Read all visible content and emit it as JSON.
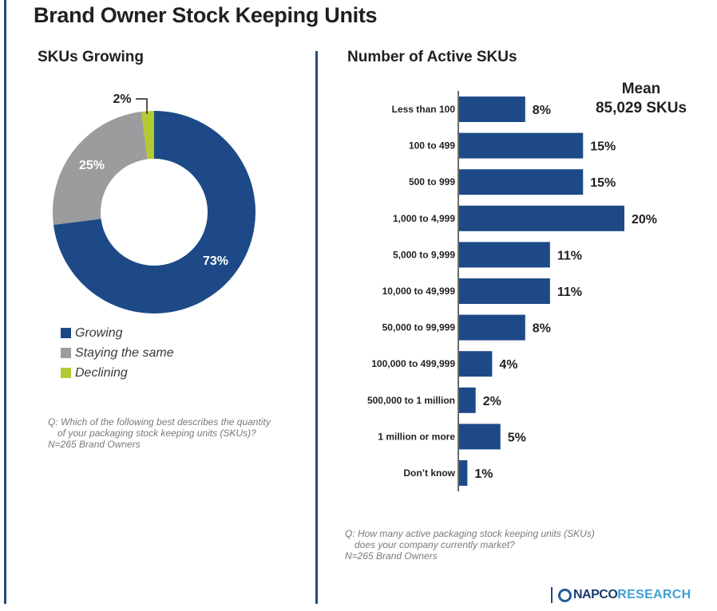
{
  "title": "Brand Owner Stock Keeping Units",
  "colors": {
    "primary": "#1d4a87",
    "gray": "#9b9c9e",
    "green": "#b5c930",
    "divider": "#274b7a",
    "text": "#231f20",
    "note": "#7a7a7a"
  },
  "left_panel": {
    "subtitle": "SKUs Growing",
    "note_line1": "Q: Which of the following best describes the quantity",
    "note_line2": "of your packaging stock keeping units (SKUs)?",
    "note_line3": "N=265 Brand Owners"
  },
  "right_panel": {
    "subtitle": "Number of Active SKUs",
    "mean_label": "Mean",
    "mean_value": "85,029 SKUs",
    "note_line1": "Q: How many active packaging stock keeping units (SKUs)",
    "note_line2": "does your company currently market?",
    "note_line3": "N=265 Brand Owners"
  },
  "logo": {
    "brand": "NAPCO",
    "suffix": "RESEARCH"
  },
  "chart_data": [
    {
      "type": "pie",
      "subtype": "donut",
      "title": "SKUs Growing",
      "categories": [
        "Growing",
        "Staying the same",
        "Declining"
      ],
      "values": [
        73,
        25,
        2
      ],
      "labels": [
        "73%",
        "25%",
        "2%"
      ],
      "colors": [
        "#1d4a87",
        "#9b9c9e",
        "#b5c930"
      ],
      "legend": "bottom-left",
      "unit": "%"
    },
    {
      "type": "bar",
      "orientation": "horizontal",
      "title": "Number of Active SKUs",
      "categories": [
        "Less than 100",
        "100 to 499",
        "500 to 999",
        "1,000 to 4,999",
        "5,000 to 9,999",
        "10,000 to 49,999",
        "50,000 to 99,999",
        "100,000 to 499,999",
        "500,000 to 1 million",
        "1 million or more",
        "Don’t know"
      ],
      "values": [
        8,
        15,
        15,
        20,
        11,
        11,
        8,
        4,
        2,
        5,
        1
      ],
      "labels": [
        "8%",
        "15%",
        "15%",
        "20%",
        "11%",
        "11%",
        "8%",
        "4%",
        "2%",
        "5%",
        "1%"
      ],
      "color": "#1d4a87",
      "xlim": [
        0,
        20
      ],
      "grid": false,
      "annotation": "Mean 85,029 SKUs",
      "unit": "%"
    }
  ]
}
